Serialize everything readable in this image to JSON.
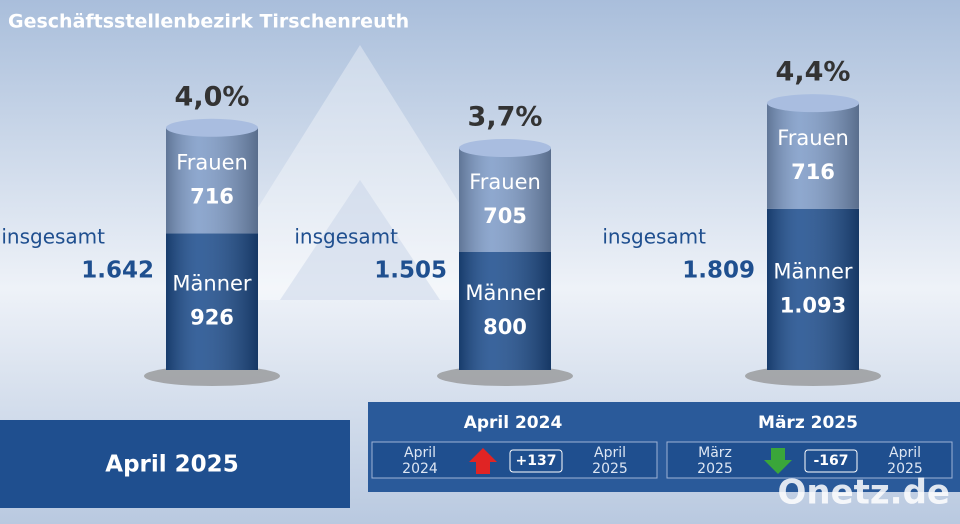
{
  "chart_data": {
    "type": "bar",
    "stacked": true,
    "title": "Geschäftsstellenbezirk Tirschenreuth",
    "categories": [
      "April 2025",
      "April 2024",
      "März 2025"
    ],
    "series": [
      {
        "name": "Männer",
        "color": "#1f4f8f",
        "values": [
          926,
          800,
          1093
        ],
        "value_labels": [
          "926",
          "800",
          "1.093"
        ]
      },
      {
        "name": "Frauen",
        "color": "#7f9cc8",
        "values": [
          716,
          705,
          716
        ],
        "value_labels": [
          "716",
          "705",
          "716"
        ]
      }
    ],
    "total_label": "insgesamt",
    "totals": [
      1642,
      1505,
      1809
    ],
    "total_value_labels": [
      "1.642",
      "1.505",
      "1.809"
    ],
    "rates": [
      4.0,
      3.7,
      4.4
    ],
    "rate_labels": [
      "4,0%",
      "3,7%",
      "4,4%"
    ],
    "comparisons": [
      {
        "title": "April 2024",
        "from_month": "April",
        "from_year": "2024",
        "to_month": "April",
        "to_year": "2025",
        "change": 137,
        "change_label": "+137"
      },
      {
        "title": "März 2025",
        "from_month": "März",
        "from_year": "2025",
        "to_month": "April",
        "to_year": "2025",
        "change": -167,
        "change_label": "-167"
      }
    ],
    "watermark": "Onetz.de"
  }
}
